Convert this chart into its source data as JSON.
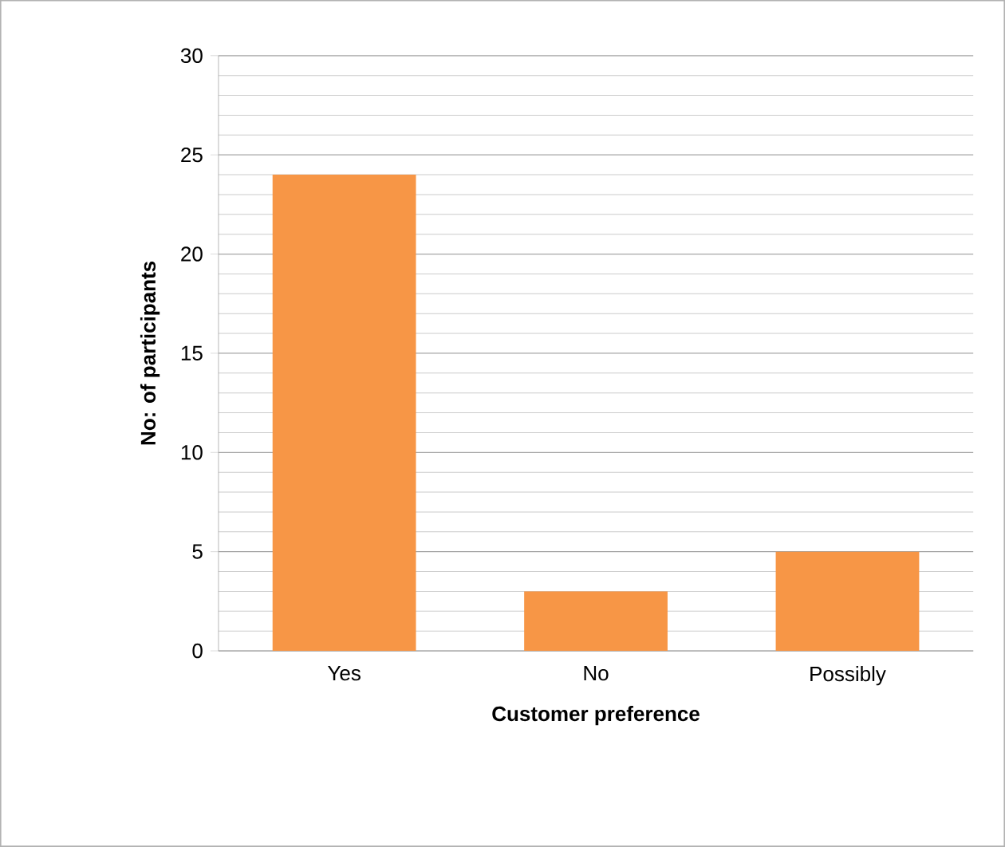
{
  "chart_data": {
    "type": "bar",
    "xlabel": "Customer preference",
    "ylabel": "No: of participants",
    "categories": [
      "Yes",
      "No",
      "Possibly"
    ],
    "values": [
      24,
      3,
      5
    ],
    "color": "#f79646",
    "ylim": [
      0,
      30
    ],
    "yticks": [
      0,
      5,
      10,
      15,
      20,
      25,
      30
    ],
    "grid": "y"
  }
}
